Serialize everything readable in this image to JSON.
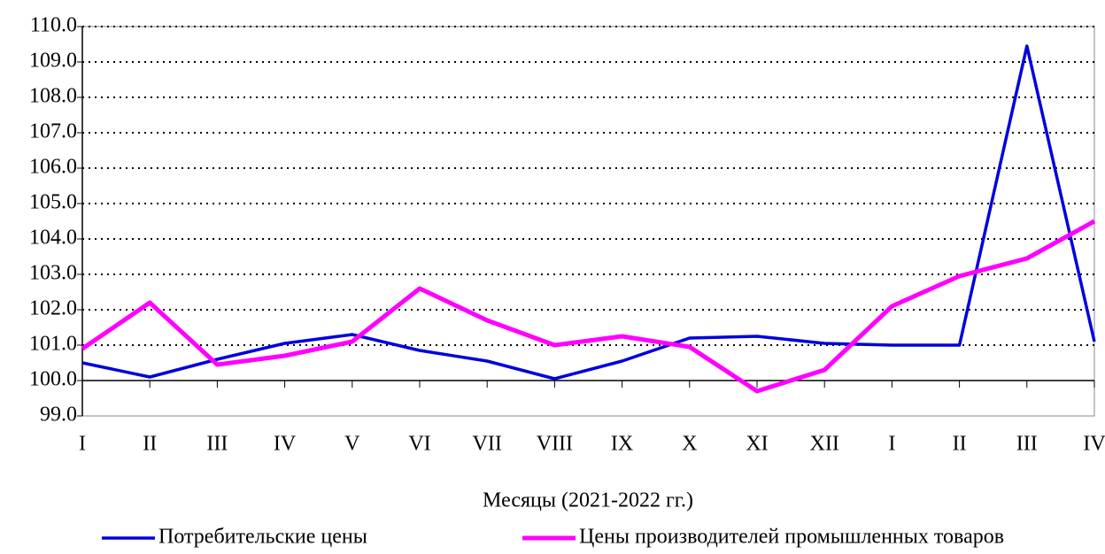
{
  "chart_data": {
    "type": "line",
    "x_label": "Месяцы (2021-2022 гг.)",
    "categories": [
      "I",
      "II",
      "III",
      "IV",
      "V",
      "VI",
      "VII",
      "VIII",
      "IX",
      "X",
      "XI",
      "XII",
      "I",
      "II",
      "III",
      "IV"
    ],
    "series": [
      {
        "name": "Потребительские цены",
        "color": "#0000dd",
        "values": [
          100.5,
          100.1,
          100.6,
          101.05,
          101.3,
          100.85,
          100.55,
          100.05,
          100.55,
          101.2,
          101.25,
          101.05,
          101.0,
          101.0,
          109.45,
          101.1
        ]
      },
      {
        "name": "Цены производителей промышленных товаров",
        "color": "#ff00ff",
        "values": [
          100.9,
          102.2,
          100.45,
          100.7,
          101.1,
          102.6,
          101.7,
          101.0,
          101.25,
          100.95,
          99.7,
          100.3,
          102.1,
          102.95,
          103.45,
          104.5
        ]
      }
    ],
    "ylim": [
      99,
      110
    ],
    "yticks": [
      {
        "value": 99,
        "label": "99.0"
      },
      {
        "value": 100,
        "label": "100.0"
      },
      {
        "value": 101,
        "label": "101.0"
      },
      {
        "value": 102,
        "label": "102.0"
      },
      {
        "value": 103,
        "label": "103.0"
      },
      {
        "value": 104,
        "label": "104.0"
      },
      {
        "value": 105,
        "label": "105.0"
      },
      {
        "value": 106,
        "label": "106.0"
      },
      {
        "value": 107,
        "label": "107.0"
      },
      {
        "value": 108,
        "label": "108.0"
      },
      {
        "value": 109,
        "label": "109.0"
      },
      {
        "value": 110,
        "label": "110.0"
      }
    ],
    "grid": true,
    "axis_value": 100
  }
}
